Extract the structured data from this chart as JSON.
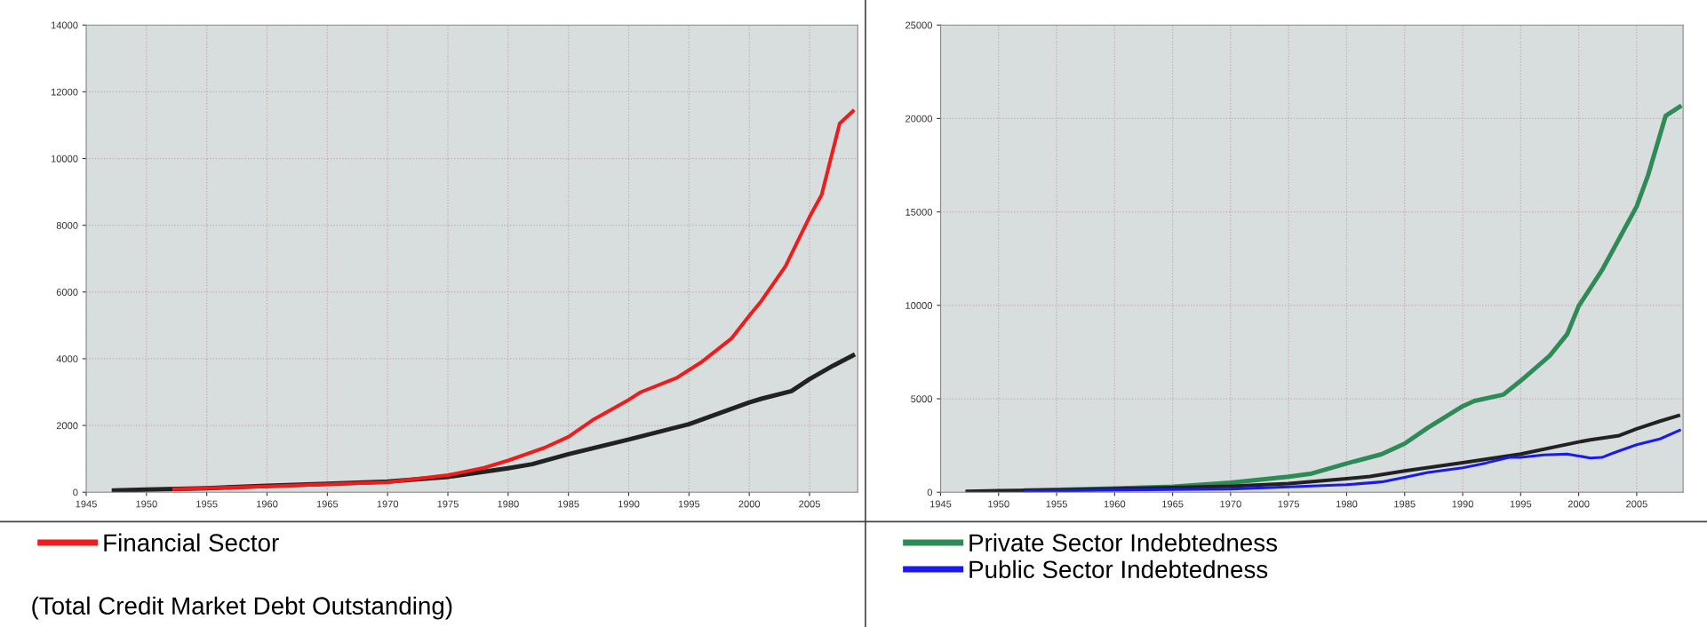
{
  "chart_data": [
    {
      "type": "line",
      "xlim": [
        1945,
        2009
      ],
      "xticks": [
        1945,
        1950,
        1955,
        1960,
        1965,
        1970,
        1975,
        1980,
        1985,
        1990,
        1995,
        2000,
        2005
      ],
      "ylim": [
        0,
        14000
      ],
      "yticks": [
        0,
        2000,
        4000,
        6000,
        8000,
        10000,
        12000,
        14000
      ],
      "grid": true,
      "legend": "bottom",
      "line_style": "solid",
      "annotations": [
        "(Total Credit Market Debt Outstanding)"
      ],
      "series": [
        {
          "color": "#222222",
          "x": [
            1947.3,
            1950,
            1955,
            1960,
            1965,
            1970,
            1975,
            1980,
            1982,
            1985,
            1990,
            1995,
            2000,
            2001,
            2003.5,
            2005,
            2007,
            2008.6
          ],
          "values": [
            50,
            80,
            120,
            190,
            250,
            320,
            460,
            720,
            840,
            1140,
            1580,
            2040,
            2690,
            2800,
            3030,
            3390,
            3800,
            4100
          ]
        },
        {
          "name": "Financial Sector",
          "color": "#ee1c1c",
          "x": [
            1952.3,
            1955,
            1960,
            1965,
            1970,
            1975,
            1978,
            1980,
            1983,
            1985,
            1987,
            1990,
            1991,
            1994,
            1996,
            1998.5,
            2000,
            2001,
            2003,
            2005,
            2006,
            2007.5,
            2008.6
          ],
          "values": [
            90,
            120,
            170,
            240,
            300,
            510,
            730,
            950,
            1330,
            1660,
            2160,
            2770,
            3000,
            3430,
            3890,
            4600,
            5290,
            5730,
            6770,
            8250,
            8910,
            11050,
            11420
          ]
        }
      ]
    },
    {
      "type": "line",
      "xlim": [
        1945,
        2009
      ],
      "xticks": [
        1945,
        1950,
        1955,
        1960,
        1965,
        1970,
        1975,
        1980,
        1985,
        1990,
        1995,
        2000,
        2005
      ],
      "ylim": [
        0,
        25000
      ],
      "yticks": [
        0,
        5000,
        10000,
        15000,
        20000,
        25000
      ],
      "grid": true,
      "legend": "bottom",
      "line_style": "solid",
      "series": [
        {
          "name": "Private Sector Indebtedness",
          "color": "#2e8b57",
          "x": [
            1952.3,
            1955,
            1960,
            1965,
            1970,
            1975,
            1977,
            1980,
            1983,
            1985,
            1987,
            1990,
            1991,
            1993.5,
            1995,
            1997.5,
            1999,
            2000,
            2002,
            2003.5,
            2005,
            2006,
            2007.5,
            2008.7
          ],
          "values": [
            90,
            130,
            200,
            300,
            510,
            830,
            1000,
            1540,
            2030,
            2600,
            3450,
            4600,
            4880,
            5220,
            5960,
            7300,
            8450,
            9960,
            11870,
            13580,
            15300,
            17000,
            20150,
            20630
          ]
        },
        {
          "color": "#222222",
          "x": [
            1947.3,
            1950,
            1955,
            1960,
            1965,
            1970,
            1975,
            1980,
            1982,
            1985,
            1990,
            1995,
            2000,
            2001,
            2003.5,
            2005,
            2007,
            2008.6
          ],
          "values": [
            50,
            80,
            120,
            190,
            250,
            320,
            460,
            720,
            840,
            1140,
            1580,
            2040,
            2690,
            2800,
            3030,
            3390,
            3800,
            4100
          ]
        },
        {
          "name": "Public Sector Indebtedness",
          "color": "#1a1aee",
          "x": [
            1952.3,
            1960,
            1965,
            1970,
            1975,
            1980,
            1983,
            1985,
            1987,
            1990,
            1992,
            1994,
            1995,
            1997,
            1999,
            2000,
            2001,
            2002,
            2003,
            2005,
            2007,
            2008.7
          ],
          "values": [
            60,
            110,
            140,
            170,
            280,
            400,
            550,
            800,
            1060,
            1310,
            1560,
            1860,
            1860,
            1990,
            2040,
            1940,
            1830,
            1860,
            2100,
            2540,
            2850,
            3310
          ]
        }
      ]
    }
  ]
}
